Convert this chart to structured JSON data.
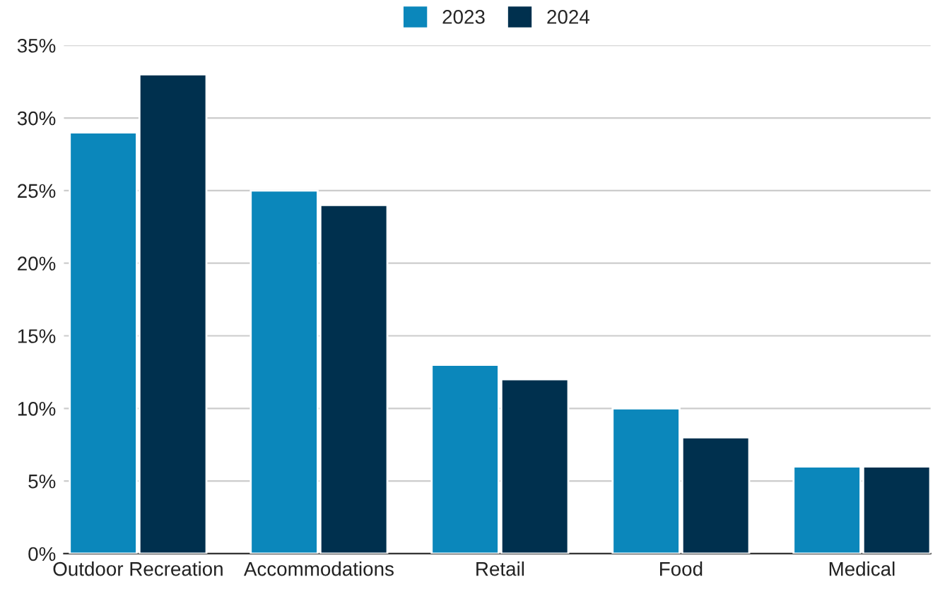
{
  "chart_data": {
    "type": "bar",
    "categories": [
      "Outdoor Recreation",
      "Accommodations",
      "Retail",
      "Food",
      "Medical"
    ],
    "series": [
      {
        "name": "2023",
        "color": "#0b87bb",
        "values": [
          29,
          25,
          13,
          10,
          6
        ]
      },
      {
        "name": "2024",
        "color": "#00304e",
        "values": [
          33,
          24,
          12,
          8,
          6
        ]
      }
    ],
    "ylim": [
      0,
      35
    ],
    "yticks": [
      {
        "value": 0,
        "label": "0%"
      },
      {
        "value": 5,
        "label": "5%"
      },
      {
        "value": 10,
        "label": "10%"
      },
      {
        "value": 15,
        "label": "15%"
      },
      {
        "value": 20,
        "label": "20%"
      },
      {
        "value": 25,
        "label": "25%"
      },
      {
        "value": 30,
        "label": "30%"
      },
      {
        "value": 35,
        "label": "35%"
      }
    ],
    "grid": "y",
    "legend": "top"
  }
}
